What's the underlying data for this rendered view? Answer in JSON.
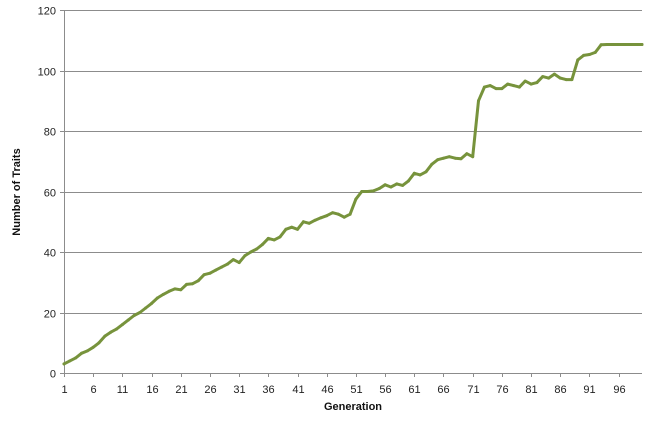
{
  "chart_data": {
    "type": "line",
    "xlabel": "Generation",
    "ylabel": "Number of Traits",
    "xlim": [
      1,
      100
    ],
    "ylim": [
      0,
      120
    ],
    "yticks": [
      0,
      20,
      40,
      60,
      80,
      100,
      120
    ],
    "xticks": [
      1,
      6,
      11,
      16,
      21,
      26,
      31,
      36,
      41,
      46,
      51,
      56,
      61,
      66,
      71,
      76,
      81,
      86,
      91,
      96
    ],
    "grid": "horizontal",
    "legend": "none",
    "series": [
      {
        "color": "#77933c",
        "x": [
          1,
          2,
          3,
          4,
          5,
          6,
          7,
          8,
          9,
          10,
          11,
          12,
          13,
          14,
          15,
          16,
          17,
          18,
          19,
          20,
          21,
          22,
          23,
          24,
          25,
          26,
          27,
          28,
          29,
          30,
          31,
          32,
          33,
          34,
          35,
          36,
          37,
          38,
          39,
          40,
          41,
          42,
          43,
          44,
          45,
          46,
          47,
          48,
          49,
          50,
          51,
          52,
          53,
          54,
          55,
          56,
          57,
          58,
          59,
          60,
          61,
          62,
          63,
          64,
          65,
          66,
          67,
          68,
          69,
          70,
          71,
          72,
          73,
          74,
          75,
          76,
          77,
          78,
          79,
          80,
          81,
          82,
          83,
          84,
          85,
          86,
          87,
          88,
          89,
          90,
          91,
          92,
          93,
          94,
          95,
          96,
          97,
          98,
          99,
          100
        ],
        "values": [
          3,
          4,
          5,
          6.5,
          7.3,
          8.5,
          10,
          12.2,
          13.5,
          14.5,
          16,
          17.5,
          19,
          20,
          21.5,
          23,
          24.8,
          26,
          27,
          27.8,
          27.5,
          29.3,
          29.5,
          30.5,
          32.5,
          33,
          34,
          35,
          36,
          37.5,
          36.5,
          38.8,
          40,
          41,
          42.5,
          44.5,
          44,
          45,
          47.5,
          48.2,
          47.5,
          50,
          49.5,
          50.5,
          51.3,
          52,
          53,
          52.5,
          51.5,
          52.5,
          57.5,
          60,
          60,
          60.2,
          61,
          62.2,
          61.5,
          62.5,
          62,
          63.5,
          66,
          65.5,
          66.5,
          69,
          70.5,
          71,
          71.5,
          71,
          70.8,
          72.5,
          71.5,
          90,
          94.5,
          95,
          94,
          94,
          95.5,
          95,
          94.5,
          96.5,
          95.5,
          96,
          98,
          97.5,
          98.8,
          97.5,
          97,
          97,
          103.5,
          105,
          105.3,
          106,
          108.5,
          108.6,
          108.6,
          108.6,
          108.6,
          108.6,
          108.6,
          108.6
        ]
      }
    ]
  }
}
